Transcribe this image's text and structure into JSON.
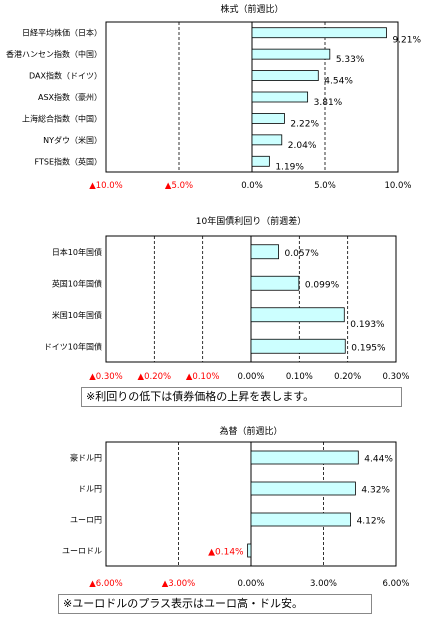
{
  "chart_data": [
    {
      "type": "bar",
      "orientation": "horizontal",
      "title": "株式（前週比）",
      "categories": [
        "日経平均株価（日本）",
        "香港ハンセン指数（中国）",
        "DAX指数（ドイツ）",
        "ASX指数（豪州）",
        "上海総合指数（中国）",
        "NYダウ（米国）",
        "FTSE指数（英国）"
      ],
      "values": [
        9.21,
        5.33,
        4.54,
        3.81,
        2.22,
        2.04,
        1.19
      ],
      "value_labels": [
        "9.21%",
        "5.33%",
        "4.54%",
        "3.81%",
        "2.22%",
        "2.04%",
        "1.19%"
      ],
      "xlim": [
        -10,
        10
      ],
      "tick_values": [
        -10,
        -5,
        0,
        5,
        10
      ],
      "tick_labels": [
        "▲10.0%",
        "▲5.0%",
        "0.0%",
        "5.0%",
        "10.0%"
      ],
      "grid": "dashed vertical",
      "bar_color": "#ccffff",
      "negative_label_color": "#ff0000"
    },
    {
      "type": "bar",
      "orientation": "horizontal",
      "title": "10年国債利回り（前週差）",
      "categories": [
        "日本10年国債",
        "英国10年国債",
        "米国10年国債",
        "ドイツ10年国債"
      ],
      "values": [
        0.057,
        0.099,
        0.193,
        0.195
      ],
      "value_labels": [
        "0.057%",
        "0.099%",
        "0.193%",
        "0.195%"
      ],
      "xlim": [
        -0.3,
        0.3
      ],
      "tick_values": [
        -0.3,
        -0.2,
        -0.1,
        0,
        0.1,
        0.2,
        0.3
      ],
      "tick_labels": [
        "▲0.30%",
        "▲0.20%",
        "▲0.10%",
        "0.00%",
        "0.10%",
        "0.20%",
        "0.30%"
      ],
      "grid": "dashed vertical",
      "bar_color": "#ccffff",
      "negative_label_color": "#ff0000",
      "note": "※利回りの低下は債券価格の上昇を表します。"
    },
    {
      "type": "bar",
      "orientation": "horizontal",
      "title": "為替（前週比）",
      "categories": [
        "豪ドル円",
        "ドル円",
        "ユーロ円",
        "ユーロドル"
      ],
      "values": [
        4.44,
        4.32,
        4.12,
        -0.14
      ],
      "value_labels": [
        "4.44%",
        "4.32%",
        "4.12%",
        "▲0.14%"
      ],
      "xlim": [
        -6,
        6
      ],
      "tick_values": [
        -6,
        -3,
        0,
        3,
        6
      ],
      "tick_labels": [
        "▲6.00%",
        "▲3.00%",
        "0.00%",
        "3.00%",
        "6.00%"
      ],
      "grid": "dashed vertical",
      "bar_color": "#ccffff",
      "negative_label_color": "#ff0000",
      "note": "※ユーロドルのプラス表示はユーロ高・ドル安。"
    }
  ]
}
